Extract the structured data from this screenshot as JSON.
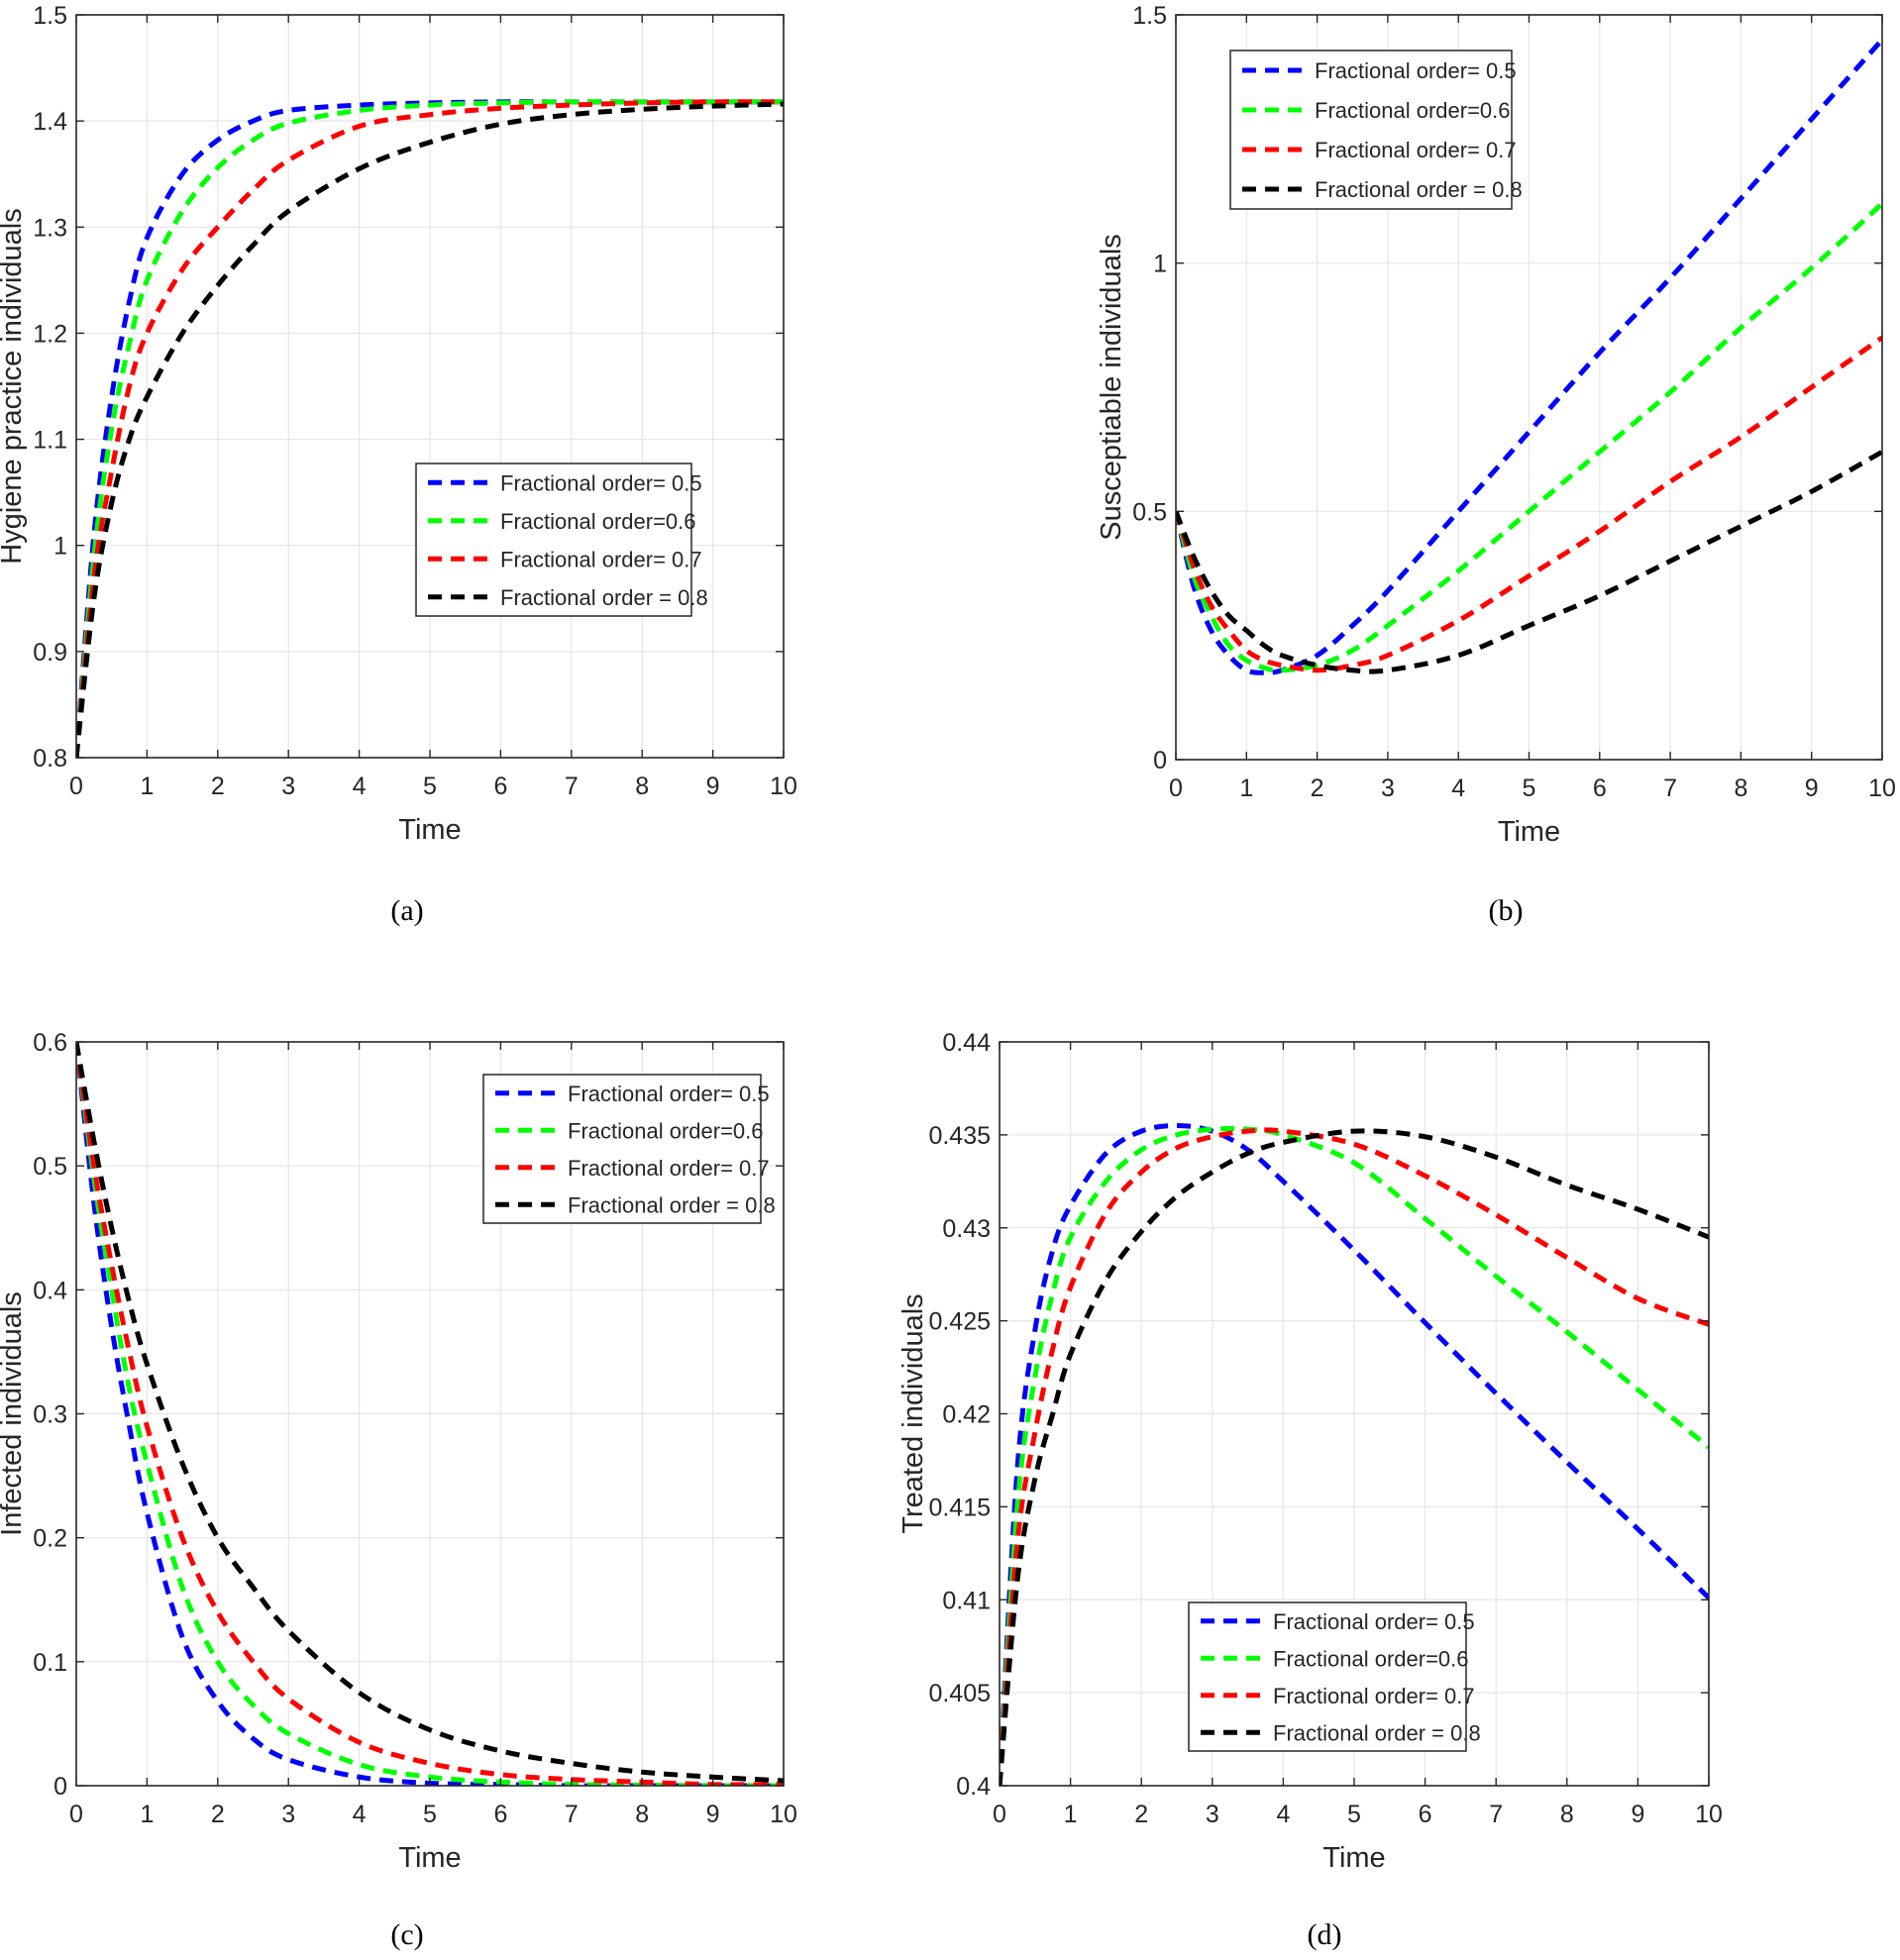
{
  "chart_data": [
    {
      "type": "line",
      "panel": "a",
      "caption": "(a)",
      "xlabel": "Time",
      "ylabel": "Hygiene practice individuals",
      "xlim": [
        0,
        10
      ],
      "ylim": [
        0.8,
        1.5
      ],
      "xticks": [
        0,
        1,
        2,
        3,
        4,
        5,
        6,
        7,
        8,
        9,
        10
      ],
      "yticks": [
        0.8,
        0.9,
        1,
        1.1,
        1.2,
        1.3,
        1.4,
        1.5
      ],
      "ytick_labels": [
        "0.8",
        "0.9",
        "1",
        "1.1",
        "1.2",
        "1.3",
        "1.4",
        "1.5"
      ],
      "grid": true,
      "legend_position": "center-right",
      "x": [
        0,
        0.25,
        0.5,
        0.75,
        1,
        1.5,
        2,
        2.5,
        3,
        4,
        5,
        6,
        7,
        8,
        9,
        10
      ],
      "series": [
        {
          "name": "Fractional order= 0.5",
          "color": "#0000ff",
          "values": [
            0.8,
            1.01,
            1.14,
            1.23,
            1.29,
            1.35,
            1.382,
            1.4,
            1.41,
            1.415,
            1.417,
            1.418,
            1.418,
            1.418,
            1.418,
            1.418
          ]
        },
        {
          "name": "Fractional order=0.6",
          "color": "#00ff00",
          "values": [
            0.8,
            0.99,
            1.11,
            1.19,
            1.25,
            1.315,
            1.356,
            1.382,
            1.398,
            1.41,
            1.415,
            1.417,
            1.418,
            1.418,
            1.418,
            1.418
          ]
        },
        {
          "name": "Fractional order= 0.7",
          "color": "#ff0000",
          "values": [
            0.8,
            0.97,
            1.07,
            1.15,
            1.2,
            1.26,
            1.3,
            1.335,
            1.363,
            1.395,
            1.406,
            1.412,
            1.415,
            1.417,
            1.418,
            1.418
          ]
        },
        {
          "name": "Fractional order = 0.8",
          "color": "#000000",
          "values": [
            0.8,
            0.95,
            1.04,
            1.1,
            1.14,
            1.2,
            1.245,
            1.283,
            1.315,
            1.355,
            1.38,
            1.397,
            1.406,
            1.411,
            1.414,
            1.416
          ]
        }
      ]
    },
    {
      "type": "line",
      "panel": "b",
      "caption": "(b)",
      "xlabel": "Time",
      "ylabel": "Susceptiable individuals",
      "xlim": [
        0,
        10
      ],
      "ylim": [
        0,
        1.5
      ],
      "xticks": [
        0,
        1,
        2,
        3,
        4,
        5,
        6,
        7,
        8,
        9,
        10
      ],
      "yticks": [
        0,
        0.5,
        1,
        1.5
      ],
      "ytick_labels": [
        "0",
        "0.5",
        "1",
        "1.5"
      ],
      "grid": true,
      "legend_position": "top-left",
      "x": [
        0,
        0.25,
        0.5,
        0.75,
        1,
        1.25,
        1.5,
        2,
        2.5,
        3,
        4,
        5,
        6,
        7,
        8,
        9,
        10
      ],
      "series": [
        {
          "name": "Fractional order= 0.5",
          "color": "#0000ff",
          "values": [
            0.5,
            0.35,
            0.26,
            0.21,
            0.18,
            0.175,
            0.18,
            0.21,
            0.27,
            0.34,
            0.5,
            0.66,
            0.82,
            0.97,
            1.13,
            1.29,
            1.45
          ]
        },
        {
          "name": "Fractional order=0.6",
          "color": "#00ff00",
          "values": [
            0.5,
            0.37,
            0.29,
            0.23,
            0.2,
            0.185,
            0.18,
            0.19,
            0.22,
            0.27,
            0.38,
            0.5,
            0.62,
            0.74,
            0.87,
            0.99,
            1.12
          ]
        },
        {
          "name": "Fractional order= 0.7",
          "color": "#ff0000",
          "values": [
            0.5,
            0.39,
            0.31,
            0.26,
            0.22,
            0.2,
            0.19,
            0.18,
            0.19,
            0.21,
            0.28,
            0.37,
            0.46,
            0.56,
            0.65,
            0.75,
            0.85
          ]
        },
        {
          "name": "Fractional order = 0.8",
          "color": "#000000",
          "values": [
            0.5,
            0.41,
            0.34,
            0.29,
            0.26,
            0.23,
            0.21,
            0.19,
            0.18,
            0.18,
            0.21,
            0.27,
            0.33,
            0.4,
            0.47,
            0.54,
            0.62
          ]
        }
      ]
    },
    {
      "type": "line",
      "panel": "c",
      "caption": "(c)",
      "xlabel": "Time",
      "ylabel": "Infected individuals",
      "xlim": [
        0,
        10
      ],
      "ylim": [
        0,
        0.6
      ],
      "xticks": [
        0,
        1,
        2,
        3,
        4,
        5,
        6,
        7,
        8,
        9,
        10
      ],
      "yticks": [
        0,
        0.1,
        0.2,
        0.3,
        0.4,
        0.5,
        0.6
      ],
      "ytick_labels": [
        "0",
        "0.1",
        "0.2",
        "0.3",
        "0.4",
        "0.5",
        "0.6"
      ],
      "grid": true,
      "legend_position": "top-right",
      "x": [
        0,
        0.25,
        0.5,
        0.75,
        1,
        1.5,
        2,
        2.5,
        3,
        4,
        5,
        6,
        7,
        8,
        9,
        10
      ],
      "series": [
        {
          "name": "Fractional order= 0.5",
          "color": "#0000ff",
          "values": [
            0.6,
            0.47,
            0.37,
            0.29,
            0.22,
            0.12,
            0.068,
            0.038,
            0.021,
            0.007,
            0.002,
            0.001,
            0,
            0,
            0,
            0
          ]
        },
        {
          "name": "Fractional order=0.6",
          "color": "#00ff00",
          "values": [
            0.6,
            0.49,
            0.4,
            0.32,
            0.26,
            0.16,
            0.1,
            0.065,
            0.042,
            0.017,
            0.007,
            0.003,
            0.001,
            0.0005,
            0,
            0
          ]
        },
        {
          "name": "Fractional order= 0.7",
          "color": "#ff0000",
          "values": [
            0.6,
            0.5,
            0.42,
            0.35,
            0.29,
            0.2,
            0.14,
            0.1,
            0.07,
            0.035,
            0.018,
            0.009,
            0.005,
            0.003,
            0.001,
            0.001
          ]
        },
        {
          "name": "Fractional order = 0.8",
          "color": "#000000",
          "values": [
            0.6,
            0.52,
            0.45,
            0.39,
            0.34,
            0.26,
            0.2,
            0.16,
            0.125,
            0.075,
            0.045,
            0.028,
            0.018,
            0.011,
            0.007,
            0.004
          ]
        }
      ]
    },
    {
      "type": "line",
      "panel": "d",
      "caption": "(d)",
      "xlabel": "Time",
      "ylabel": "Treated individuals",
      "xlim": [
        0,
        10
      ],
      "ylim": [
        0.4,
        0.44
      ],
      "xticks": [
        0,
        1,
        2,
        3,
        4,
        5,
        6,
        7,
        8,
        9,
        10
      ],
      "yticks": [
        0.4,
        0.405,
        0.41,
        0.415,
        0.42,
        0.425,
        0.43,
        0.435,
        0.44
      ],
      "ytick_labels": [
        "0.4",
        "0.405",
        "0.41",
        "0.415",
        "0.42",
        "0.425",
        "0.43",
        "0.435",
        "0.44"
      ],
      "grid": true,
      "legend_position": "bottom-left",
      "x": [
        0,
        0.25,
        0.5,
        0.75,
        1,
        1.5,
        2,
        2.5,
        3,
        3.5,
        4,
        5,
        6,
        7,
        8,
        9,
        10
      ],
      "series": [
        {
          "name": "Fractional order= 0.5",
          "color": "#0000ff",
          "values": [
            0.4,
            0.417,
            0.4245,
            0.4288,
            0.4312,
            0.434,
            0.4352,
            0.4355,
            0.4352,
            0.4342,
            0.4325,
            0.4288,
            0.4249,
            0.4211,
            0.4174,
            0.4138,
            0.4101
          ]
        },
        {
          "name": "Fractional order=0.6",
          "color": "#00ff00",
          "values": [
            0.4,
            0.415,
            0.422,
            0.4265,
            0.4295,
            0.4325,
            0.4342,
            0.435,
            0.4353,
            0.4353,
            0.435,
            0.4335,
            0.4305,
            0.4274,
            0.4244,
            0.4213,
            0.4182
          ]
        },
        {
          "name": "Fractional order= 0.7",
          "color": "#ff0000",
          "values": [
            0.4,
            0.413,
            0.419,
            0.4235,
            0.4268,
            0.4308,
            0.433,
            0.4343,
            0.4349,
            0.4352,
            0.4352,
            0.4345,
            0.4328,
            0.4307,
            0.4284,
            0.4262,
            0.4248
          ]
        },
        {
          "name": "Fractional order = 0.8",
          "color": "#000000",
          "values": [
            0.4,
            0.411,
            0.4165,
            0.42,
            0.4232,
            0.4272,
            0.4298,
            0.4317,
            0.433,
            0.434,
            0.4346,
            0.4352,
            0.4349,
            0.4338,
            0.4323,
            0.431,
            0.4295
          ]
        }
      ]
    }
  ]
}
